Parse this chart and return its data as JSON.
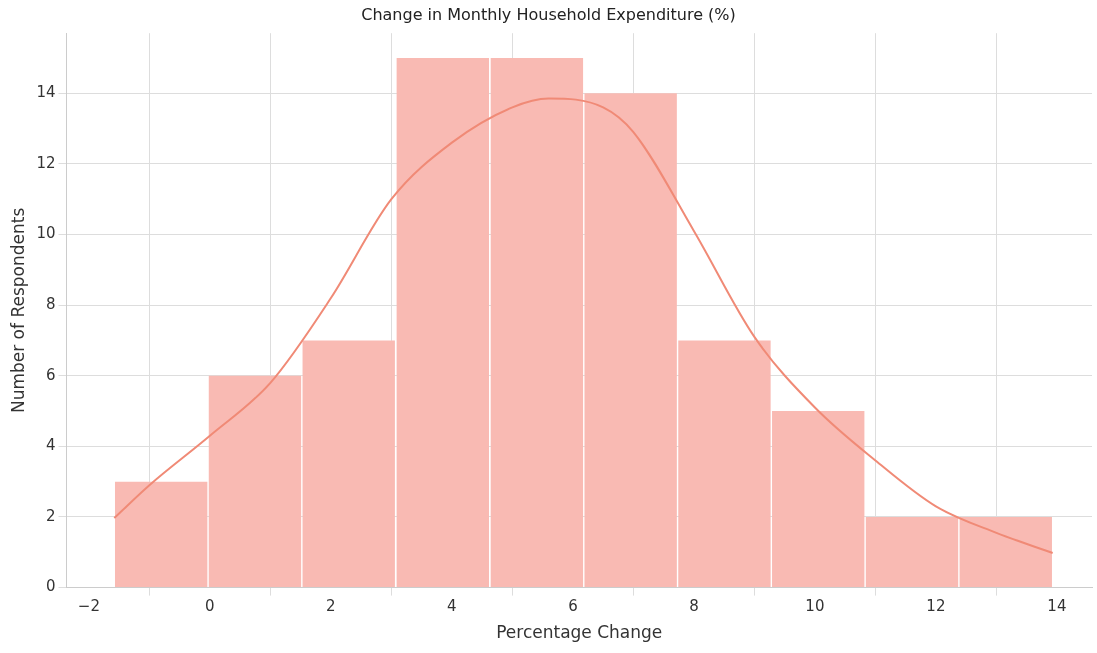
{
  "chart_data": {
    "type": "histogram",
    "title": "Change in Monthly Household Expenditure (%)",
    "xlabel": "Percentage Change",
    "ylabel": "Number of Respondents",
    "bins": [
      -1.58,
      -0.03,
      1.52,
      3.07,
      4.63,
      6.18,
      7.73,
      9.28,
      10.83,
      12.38,
      13.93
    ],
    "values": [
      3,
      6,
      7,
      15,
      15,
      14,
      7,
      5,
      2,
      2
    ],
    "color": "#f9bab3",
    "series": [
      {
        "type": "line",
        "color": "#f08a76",
        "x": [
          -1.58,
          -1,
          0,
          1,
          2,
          3,
          4,
          5,
          5.6,
          6.5,
          7,
          8,
          9,
          10,
          11,
          12,
          13,
          13.93
        ],
        "values": [
          1.97,
          2.9,
          4.3,
          5.8,
          8.2,
          11.0,
          12.6,
          13.6,
          13.85,
          13.6,
          12.9,
          10.1,
          7.1,
          5.1,
          3.6,
          2.3,
          1.55,
          0.98
        ]
      }
    ],
    "xlim": [
      -2.37,
      14.58
    ],
    "xticks": [
      -2,
      0,
      2,
      4,
      6,
      8,
      10,
      12,
      14
    ],
    "ylim": [
      0,
      15.7
    ],
    "yticks": [
      0,
      2,
      4,
      6,
      8,
      10,
      12,
      14
    ],
    "grid": true,
    "legend": false
  }
}
